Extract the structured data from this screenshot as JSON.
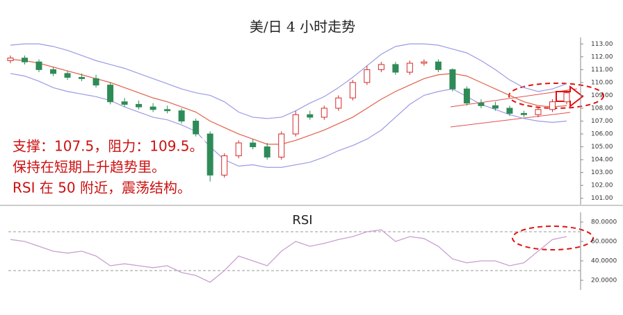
{
  "chart_data": [
    {
      "type": "candlestick",
      "title": "美/日 4 小时走势",
      "annotations": [
        "支撑：107.5，阻力：109.5。",
        "保持在短期上升趋势里。",
        "RSI 在 50 附近，震荡结构。"
      ],
      "open": [
        111.7,
        111.9,
        111.6,
        111.0,
        110.7,
        110.4,
        110.3,
        109.8,
        108.5,
        108.3,
        108.1,
        107.9,
        107.8,
        107.0,
        106.0,
        102.8,
        104.3,
        105.3,
        105.0,
        104.2,
        106.0,
        107.5,
        107.3,
        108.0,
        108.8,
        110.0,
        111.0,
        111.4,
        110.8,
        111.5,
        111.6,
        111.0,
        109.5,
        108.4,
        108.2,
        108.0,
        107.6,
        107.5,
        107.9,
        108.5
      ],
      "high": [
        112.1,
        112.1,
        111.8,
        111.2,
        110.9,
        110.7,
        110.6,
        110.0,
        108.8,
        108.6,
        108.4,
        108.2,
        108.0,
        107.2,
        106.2,
        104.5,
        105.5,
        105.6,
        105.3,
        106.2,
        107.8,
        107.8,
        108.2,
        109.0,
        110.2,
        111.3,
        111.6,
        111.6,
        111.7,
        111.8,
        111.8,
        111.1,
        109.7,
        108.7,
        108.5,
        108.2,
        107.8,
        108.1,
        108.7,
        109.4
      ],
      "low": [
        111.5,
        111.4,
        110.8,
        110.5,
        110.2,
        110.1,
        109.6,
        108.3,
        108.1,
        107.9,
        107.7,
        107.6,
        106.8,
        105.8,
        102.3,
        102.6,
        104.1,
        104.8,
        104.0,
        104.0,
        105.8,
        107.1,
        107.1,
        107.8,
        108.6,
        109.8,
        110.8,
        110.6,
        110.6,
        111.3,
        110.8,
        109.3,
        108.2,
        108.0,
        107.8,
        107.4,
        107.3,
        107.3,
        107.7,
        108.3
      ],
      "close": [
        111.9,
        111.6,
        111.0,
        110.7,
        110.4,
        110.3,
        109.8,
        108.5,
        108.3,
        108.1,
        107.9,
        107.8,
        107.0,
        106.0,
        102.8,
        104.3,
        105.3,
        105.0,
        104.2,
        106.0,
        107.5,
        107.3,
        108.0,
        108.8,
        110.0,
        111.0,
        111.4,
        110.8,
        111.5,
        111.6,
        111.0,
        109.5,
        108.4,
        108.2,
        108.0,
        107.6,
        107.5,
        107.9,
        108.5,
        109.2
      ],
      "up_color": "#d62728",
      "down_color": "#2e8b57",
      "bands": [
        {
          "color": "#9a9ae6",
          "values": [
            112.9,
            113.0,
            113.0,
            112.8,
            112.5,
            112.1,
            111.7,
            111.4,
            111.1,
            110.7,
            110.3,
            109.9,
            109.5,
            109.2,
            109.0,
            108.5,
            107.7,
            107.3,
            107.2,
            107.3,
            107.8,
            108.4,
            108.9,
            109.6,
            110.4,
            111.3,
            112.2,
            112.8,
            113.0,
            113.0,
            112.9,
            112.6,
            112.3,
            111.7,
            111.0,
            110.2,
            109.6,
            109.3,
            109.5,
            109.9
          ]
        },
        {
          "color": "#e0604a",
          "values": [
            111.8,
            111.7,
            111.5,
            111.2,
            110.9,
            110.6,
            110.3,
            110.0,
            109.6,
            109.2,
            108.8,
            108.5,
            108.1,
            107.7,
            107.0,
            106.5,
            106.0,
            105.6,
            105.2,
            105.2,
            105.5,
            105.9,
            106.3,
            106.8,
            107.3,
            108.0,
            108.7,
            109.3,
            109.8,
            110.3,
            110.6,
            110.7,
            110.5,
            110.0,
            109.5,
            109.0,
            108.5,
            108.2,
            108.1,
            108.2
          ]
        },
        {
          "color": "#9a9ae6",
          "values": [
            110.7,
            110.5,
            110.1,
            109.6,
            109.3,
            109.1,
            108.9,
            108.6,
            108.1,
            107.7,
            107.3,
            107.1,
            106.7,
            106.2,
            105.0,
            104.0,
            103.5,
            103.6,
            103.4,
            103.4,
            103.6,
            103.8,
            104.2,
            104.7,
            105.1,
            105.6,
            106.3,
            107.3,
            108.3,
            109.0,
            109.3,
            109.5,
            108.9,
            108.3,
            107.9,
            107.5,
            107.2,
            107.0,
            106.9,
            107.0
          ]
        }
      ],
      "ylim": [
        100.5,
        113.5
      ],
      "yticks": [
        {
          "value": 101,
          "label": "101.00"
        },
        {
          "value": 102,
          "label": "102.00"
        },
        {
          "value": 103,
          "label": "103.00"
        },
        {
          "value": 104,
          "label": "104.00"
        },
        {
          "value": 105,
          "label": "105.00"
        },
        {
          "value": 106,
          "label": "106.00"
        },
        {
          "value": 107,
          "label": "107.00"
        },
        {
          "value": 108,
          "label": "108.00"
        },
        {
          "value": 109,
          "label": "109.00"
        },
        {
          "value": 110,
          "label": "110.00"
        },
        {
          "value": 111,
          "label": "111.00"
        },
        {
          "value": 112,
          "label": "112.00"
        },
        {
          "value": 113,
          "label": "113.00"
        }
      ]
    },
    {
      "type": "line",
      "title": "RSI",
      "color": "#c8a0d0",
      "values": [
        62,
        60,
        55,
        50,
        48,
        50,
        45,
        35,
        37,
        35,
        33,
        35,
        28,
        25,
        18,
        30,
        45,
        40,
        35,
        50,
        60,
        55,
        58,
        62,
        65,
        70,
        72,
        60,
        65,
        63,
        55,
        42,
        38,
        40,
        40,
        35,
        38,
        50,
        62,
        65
      ],
      "hlines": [
        70,
        30
      ],
      "ylim": [
        10,
        90
      ],
      "yticks": [
        {
          "value": 20,
          "label": "20.0000"
        },
        {
          "value": 40,
          "label": "40.0000"
        },
        {
          "value": 60,
          "label": "60.0000"
        },
        {
          "value": 80,
          "label": "80.0000"
        }
      ]
    }
  ]
}
